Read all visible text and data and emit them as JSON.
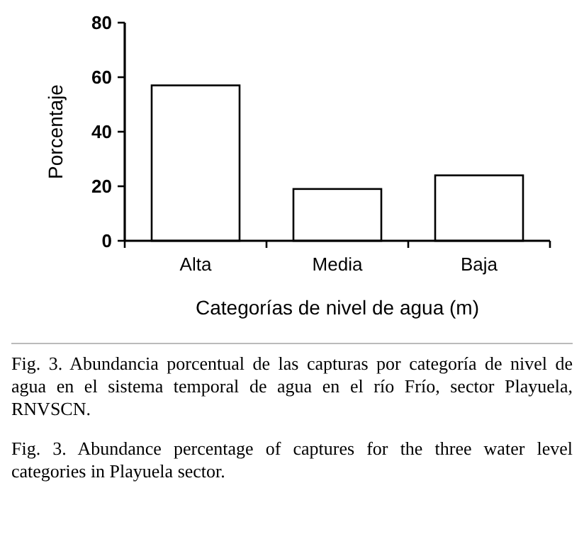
{
  "chart_data": {
    "type": "bar",
    "xlabel": "Categorías de nivel de agua (m)",
    "ylabel": "Porcentaje",
    "categories": [
      "Alta",
      "Media",
      "Baja"
    ],
    "values": [
      57,
      19,
      24
    ],
    "color": "#ffffff",
    "ylim": [
      0,
      80
    ],
    "yticks": [
      0,
      20,
      40,
      60,
      80
    ],
    "grid": false,
    "annotations": [
      "Fig. 3. Abundancia porcentual de las capturas por categoría de nivel de agua en el sistema temporal de agua en el río Frío, sector Playuela, RNVSCN.",
      "Fig. 3. Abundance percentage of captures for the three water level categories in Playuela sector."
    ]
  }
}
